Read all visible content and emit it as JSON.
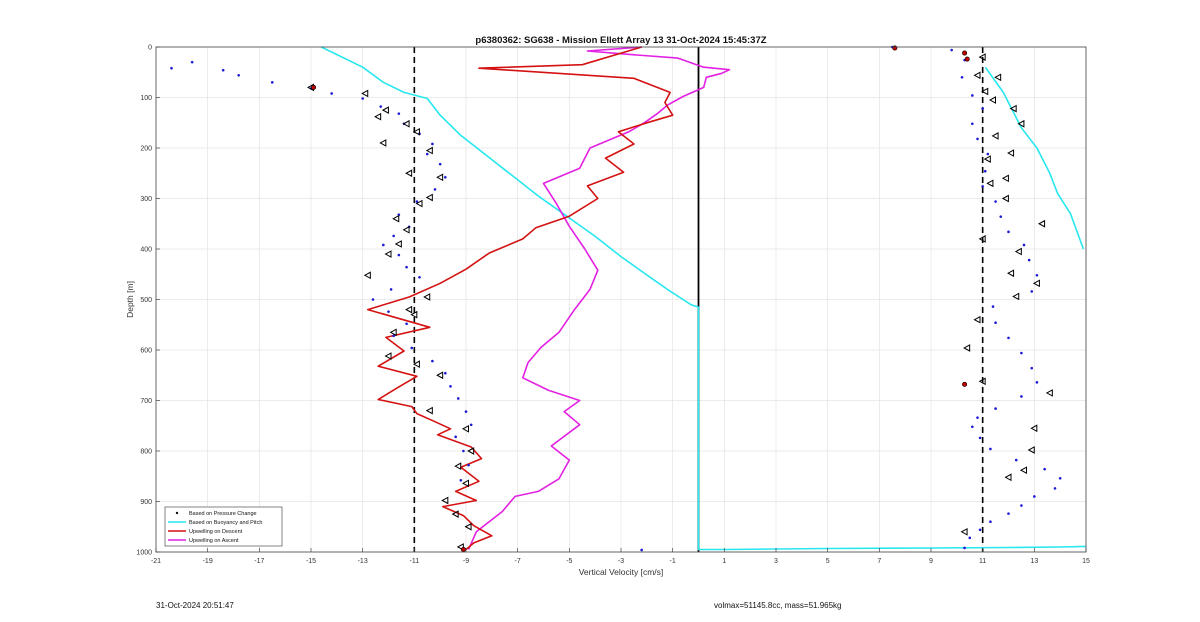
{
  "chart_data": {
    "type": "line",
    "title": "p6380362: SG638 - Mission Ellett Array 13 31-Oct-2024 15:45:37Z",
    "xlabel": "Vertical Velocity [cm/s]",
    "ylabel": "Depth [m]",
    "xlim": [
      -21,
      15
    ],
    "ylim": [
      0,
      1000
    ],
    "y_reversed": true,
    "x_ticks": [
      -21,
      -19,
      -17,
      -15,
      -13,
      -11,
      -9,
      -7,
      -5,
      -3,
      -1,
      1,
      3,
      5,
      7,
      9,
      11,
      13,
      15
    ],
    "y_ticks": [
      0,
      100,
      200,
      300,
      400,
      500,
      600,
      700,
      800,
      900,
      1000
    ],
    "grid": true,
    "legend_position": "bottom-left",
    "reference_lines": [
      {
        "x": -11,
        "style": "dashed",
        "color": "#000000"
      },
      {
        "x": 11,
        "style": "dashed",
        "color": "#000000"
      },
      {
        "x": 0,
        "style": "solid",
        "color": "#000000",
        "y_range": [
          0,
          1000
        ]
      }
    ],
    "series": [
      {
        "name": "Based on Pressure Change",
        "marker": "dot",
        "color": "#1a1ad6",
        "x": [
          -20.4,
          -19.6,
          -18.4,
          -17.8,
          -16.5,
          -15.0,
          -14.2,
          -13.0,
          -12.3,
          -11.6,
          -11.4,
          -10.8,
          -10.3,
          -10.5,
          -10.0,
          -9.8,
          -10.2,
          -10.9,
          -11.6,
          -11.2,
          -11.8,
          -12.2,
          -11.6,
          -11.3,
          -10.8,
          -11.9,
          -12.6,
          -12.0,
          -11.3,
          -11.8,
          -11.1,
          -10.3,
          -9.8,
          -9.6,
          -9.3,
          -9.0,
          -8.8,
          -9.4,
          -9.1,
          -8.9,
          -9.2,
          -2.2,
          7.5,
          9.8,
          10.3,
          10.2,
          10.6,
          11.0,
          10.6,
          10.8,
          11.2,
          11.1,
          11.0,
          11.5,
          11.7,
          12.0,
          12.6,
          12.8,
          13.1,
          12.9,
          11.4,
          11.5,
          12.0,
          12.5,
          12.9,
          13.1,
          12.5,
          11.5,
          10.8,
          10.6,
          10.9,
          11.3,
          12.3,
          13.4,
          14.0,
          13.8,
          13.0,
          12.5,
          12.0,
          11.3,
          10.9,
          10.5,
          10.3
        ],
        "y": [
          42,
          30,
          46,
          56,
          70,
          82,
          92,
          102,
          118,
          132,
          152,
          172,
          192,
          212,
          232,
          258,
          282,
          306,
          332,
          356,
          374,
          392,
          412,
          436,
          456,
          480,
          500,
          524,
          548,
          572,
          596,
          622,
          646,
          672,
          696,
          722,
          748,
          772,
          800,
          828,
          858,
          996,
          0,
          6,
          26,
          60,
          96,
          122,
          152,
          182,
          212,
          246,
          276,
          306,
          336,
          366,
          392,
          422,
          452,
          484,
          514,
          546,
          576,
          606,
          636,
          664,
          692,
          716,
          734,
          752,
          774,
          796,
          818,
          836,
          854,
          874,
          890,
          908,
          924,
          940,
          956,
          972,
          992
        ]
      },
      {
        "name": "Based on Buoyancy and Pitch",
        "marker": "line",
        "color": "#27e7ef",
        "x": [
          -14.6,
          -13.0,
          -12.2,
          -11.4,
          -10.5,
          -10.0,
          -9.2,
          -8.2,
          -7.2,
          -6.2,
          -5.1,
          -4.0,
          -3.0,
          -1.9,
          -1.2,
          -0.6,
          -0.3,
          0.0,
          0.0,
          0.0,
          0.0,
          0.0,
          1.0,
          5.0,
          9.0,
          12.0,
          14.0,
          15.0,
          11.1,
          11.8,
          12.2,
          12.5,
          13.1,
          13.6,
          13.9,
          14.4,
          14.9
        ],
        "y": [
          0,
          40,
          70,
          90,
          102,
          135,
          175,
          215,
          255,
          295,
          335,
          375,
          415,
          455,
          480,
          500,
          510,
          515,
          700,
          900,
          995,
          995,
          995,
          993,
          992,
          991,
          990,
          989,
          40,
          90,
          130,
          160,
          200,
          250,
          290,
          330,
          400
        ]
      },
      {
        "name": "Upwelling on Descent",
        "marker": "line",
        "color": "#d41212",
        "x": [
          -2.2,
          -4.5,
          -8.5,
          -2.5,
          -1.1,
          -1.3,
          -1.0,
          -2.0,
          -3.1,
          -2.5,
          -3.6,
          -2.9,
          -4.3,
          -3.9,
          -5.0,
          -6.3,
          -6.8,
          -8.1,
          -9.0,
          -10.0,
          -11.2,
          -12.8,
          -10.4,
          -12.1,
          -11.4,
          -12.4,
          -10.9,
          -11.7,
          -12.4,
          -11.1,
          -10.9,
          -10.2,
          -9.6,
          -10.1,
          -8.8,
          -8.4,
          -9.2,
          -8.5,
          -9.4,
          -8.6,
          -9.9,
          -9.1,
          -8.7,
          -8.0,
          -8.7,
          -9.0
        ],
        "y": [
          0,
          35,
          42,
          62,
          90,
          110,
          135,
          150,
          168,
          192,
          220,
          248,
          275,
          300,
          335,
          358,
          380,
          408,
          440,
          468,
          495,
          520,
          555,
          575,
          602,
          632,
          652,
          676,
          698,
          712,
          726,
          742,
          756,
          768,
          792,
          815,
          832,
          860,
          880,
          898,
          910,
          928,
          948,
          968,
          982,
          995
        ]
      },
      {
        "name": "Upwelling on Ascent",
        "marker": "line",
        "color": "#e321e3",
        "x": [
          -8.9,
          -8.6,
          -7.6,
          -7.1,
          -6.2,
          -5.4,
          -5.0,
          -5.7,
          -4.6,
          -5.2,
          -4.6,
          -5.8,
          -6.8,
          -6.6,
          -6.1,
          -5.4,
          -4.8,
          -4.2,
          -3.9,
          -4.4,
          -5.0,
          -5.5,
          -6.0,
          -4.6,
          -4.2,
          -2.7,
          -2.1,
          -1.6,
          -1.2,
          -0.6,
          0.2,
          0.3,
          0.9,
          1.2,
          0.2,
          -0.8,
          -2.6,
          -4.3,
          -2.2
        ],
        "y": [
          995,
          960,
          920,
          890,
          880,
          855,
          818,
          790,
          748,
          722,
          700,
          680,
          655,
          625,
          595,
          565,
          520,
          480,
          442,
          400,
          355,
          310,
          270,
          240,
          200,
          168,
          150,
          132,
          115,
          98,
          80,
          60,
          52,
          45,
          40,
          22,
          15,
          8,
          0
        ]
      }
    ],
    "annotation_series": [
      {
        "marker": "open-triangle",
        "color": "#000000",
        "x": [
          -15.0,
          -12.9,
          -12.1,
          -12.4,
          -11.3,
          -10.9,
          -12.2,
          -10.4,
          -11.2,
          -10.0,
          -10.4,
          -10.8,
          -11.7,
          -11.3,
          -11.6,
          -12.0,
          -12.8,
          -10.5,
          -11.2,
          -11.0,
          -11.8,
          -12.0,
          -10.9,
          -10.0,
          -10.4,
          -9.0,
          -8.8,
          -9.3,
          -9.0,
          -9.8,
          -9.4,
          -8.9,
          -9.2,
          11.0,
          10.8,
          11.6,
          11.1,
          11.4,
          12.2,
          12.5,
          11.5,
          12.1,
          11.2,
          11.9,
          11.3,
          11.9,
          13.3,
          11.0,
          12.4,
          12.1,
          13.1,
          12.3,
          10.8,
          10.4,
          11.0,
          13.6,
          13.0,
          12.9,
          12.6,
          12.0,
          10.3
        ],
        "y": [
          80,
          92,
          125,
          138,
          152,
          168,
          190,
          205,
          250,
          258,
          298,
          310,
          340,
          362,
          390,
          410,
          452,
          495,
          520,
          530,
          565,
          612,
          628,
          650,
          720,
          756,
          800,
          830,
          864,
          898,
          925,
          950,
          990,
          20,
          56,
          60,
          88,
          105,
          122,
          152,
          176,
          210,
          222,
          260,
          270,
          300,
          350,
          380,
          405,
          448,
          468,
          494,
          540,
          596,
          662,
          685,
          755,
          798,
          838,
          852,
          960
        ]
      },
      {
        "marker": "red-dot",
        "color": "#c00000",
        "x": [
          7.6,
          10.3,
          10.4,
          -14.9,
          -9.1,
          10.3
        ],
        "y": [
          2,
          12,
          24,
          80,
          995,
          668
        ]
      }
    ]
  },
  "footer": {
    "left": "31-Oct-2024 20:51:47",
    "right": "volmax=51145.8cc, mass=51.965kg"
  }
}
